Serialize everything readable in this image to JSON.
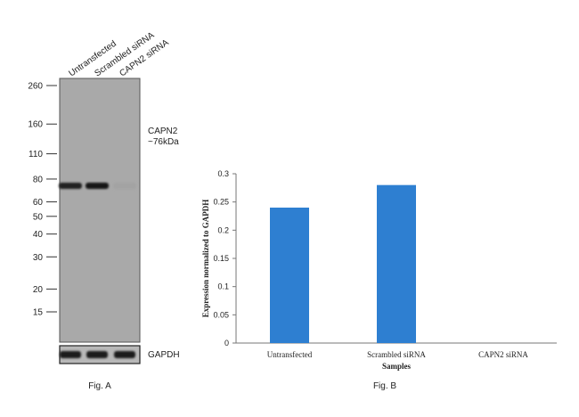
{
  "fig_a": {
    "lane_labels": [
      "Untransfected",
      "Scrambled siRNA",
      "CAPN2 siRNA"
    ],
    "mw_markers": [
      260,
      160,
      110,
      80,
      60,
      50,
      40,
      30,
      20,
      15
    ],
    "target_label": "CAPN2",
    "target_size": "~76kDa",
    "loading_control": "GAPDH",
    "band_intensity": [
      0.9,
      0.95,
      0.2
    ],
    "caption": "Fig. A"
  },
  "chart_data": {
    "type": "bar",
    "categories": [
      "Untransfected",
      "Scrambled siRNA",
      "CAPN2 siRNA"
    ],
    "values": [
      0.24,
      0.28,
      0
    ],
    "title": "",
    "xlabel": "Samples",
    "ylabel": "Expression normalized to GAPDH",
    "ylim": [
      0,
      0.3
    ],
    "yticks": [
      "0",
      "0.05",
      "0.1",
      "0.15",
      "0.2",
      "0.25",
      "0.3"
    ],
    "bar_color": "#2e7fd1",
    "grid": false,
    "legend": "none",
    "caption": "Fig. B"
  }
}
